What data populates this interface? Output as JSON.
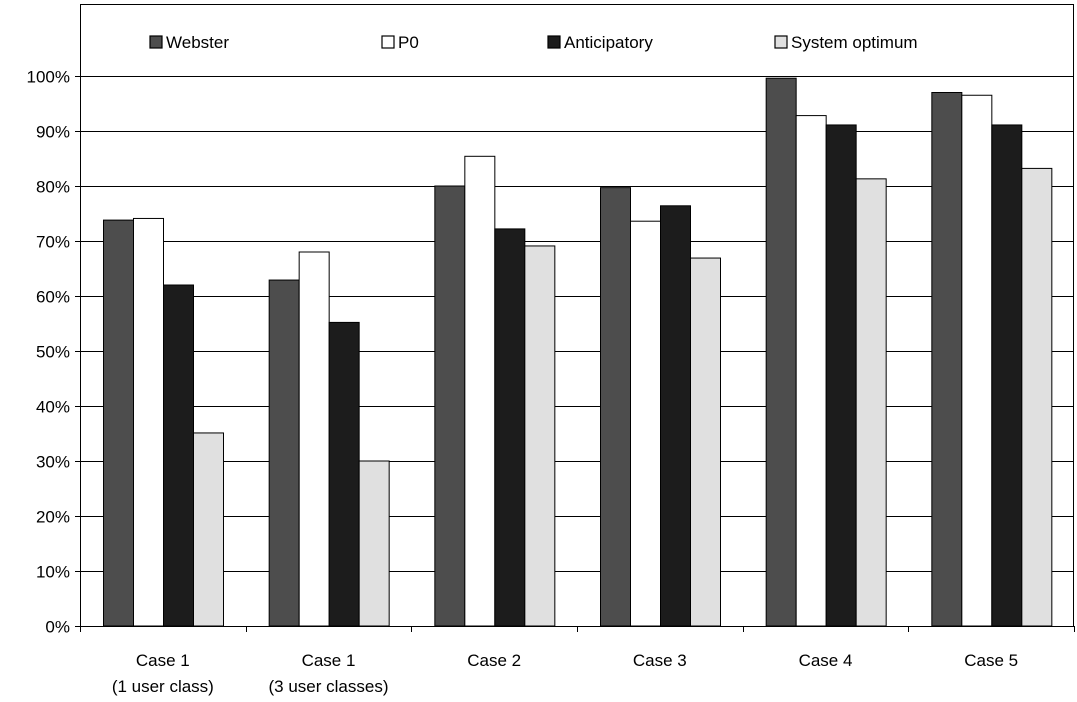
{
  "chart_data": {
    "type": "bar",
    "title": "",
    "xlabel": "",
    "ylabel": "",
    "categories": [
      [
        "Case 1",
        "(1 user class)"
      ],
      [
        "Case 1",
        "(3 user classes)"
      ],
      [
        "Case 2"
      ],
      [
        "Case 3"
      ],
      [
        "Case 4"
      ],
      [
        "Case 5"
      ]
    ],
    "series": [
      {
        "name": "Webster",
        "color": "#4d4d4d",
        "values": [
          73.8,
          62.9,
          80.0,
          79.7,
          99.6,
          97.0
        ]
      },
      {
        "name": "P0",
        "color": "#ffffff",
        "values": [
          74.1,
          68.0,
          85.4,
          73.6,
          92.8,
          96.5
        ]
      },
      {
        "name": "Anticipatory",
        "color": "#1c1c1c",
        "values": [
          62.0,
          55.2,
          72.2,
          76.4,
          91.1,
          91.1
        ]
      },
      {
        "name": "System optimum",
        "color": "#e0e0e0",
        "values": [
          35.1,
          30.0,
          69.1,
          66.9,
          81.3,
          83.2
        ]
      }
    ],
    "ylim": [
      0,
      100
    ],
    "yticks": [
      "0%",
      "10%",
      "20%",
      "30%",
      "40%",
      "50%",
      "60%",
      "70%",
      "80%",
      "90%",
      "100%"
    ],
    "grid": true,
    "legend": "top"
  }
}
